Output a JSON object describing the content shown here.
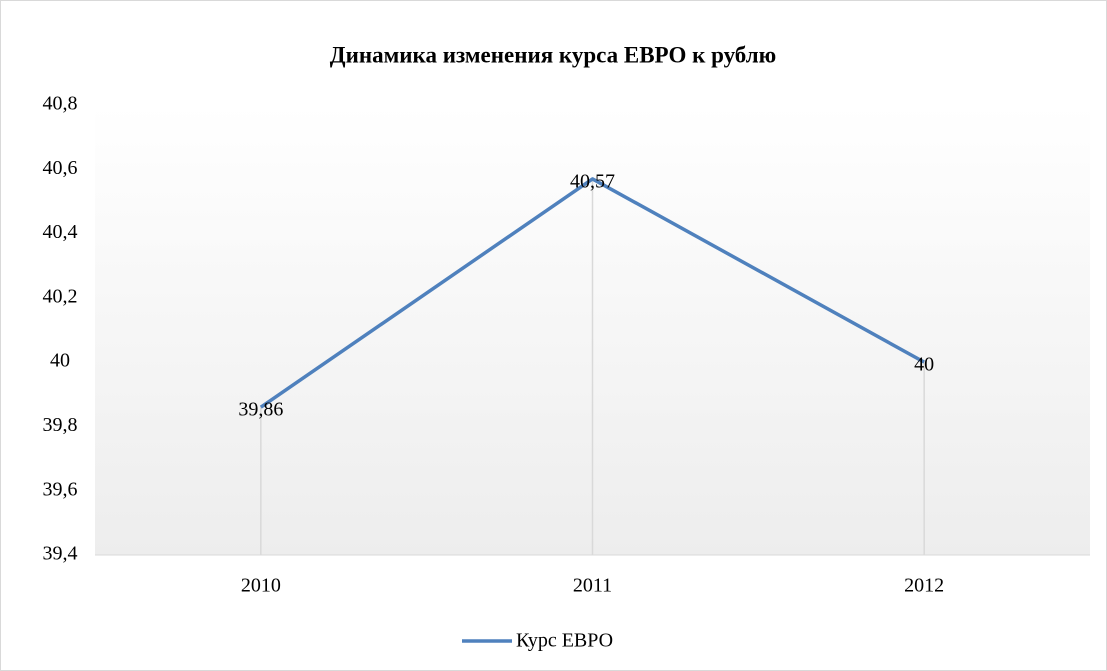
{
  "chart_data": {
    "type": "line",
    "title": "Динамика изменения курса ЕВРО к рублю",
    "categories": [
      "2010",
      "2011",
      "2012"
    ],
    "series": [
      {
        "name": "Курс ЕВРО",
        "color": "#4f81bd",
        "values": [
          39.86,
          40.57,
          40
        ],
        "value_labels": [
          "39,86",
          "40,57",
          "40"
        ]
      }
    ],
    "ylim": [
      39.4,
      40.8
    ],
    "yticks": [
      {
        "value": 39.4,
        "label": "39,4"
      },
      {
        "value": 39.6,
        "label": "39,6"
      },
      {
        "value": 39.8,
        "label": "39,8"
      },
      40,
      {
        "value": 40.2,
        "label": "40,2"
      },
      {
        "value": 40.4,
        "label": "40,4"
      },
      {
        "value": 40.6,
        "label": "40,6"
      },
      {
        "value": 40.8,
        "label": "40,8"
      }
    ],
    "legend": "bottom"
  }
}
